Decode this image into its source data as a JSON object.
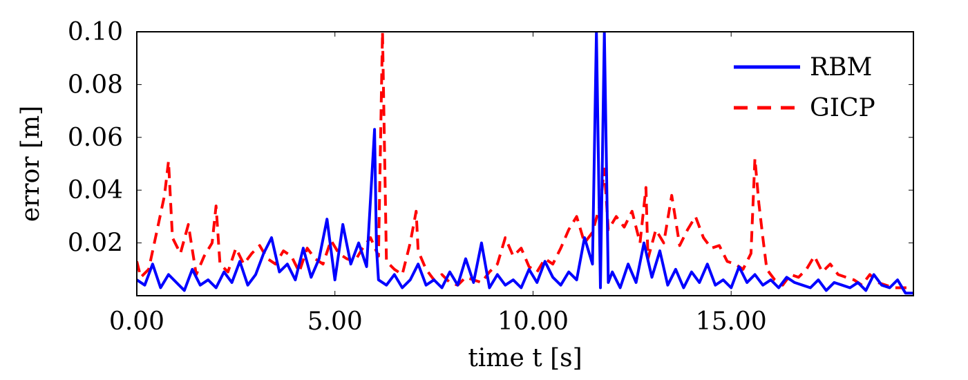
{
  "chart_data": {
    "type": "line",
    "xlabel": "time t [s]",
    "ylabel": "error [m]",
    "xlim": [
      0,
      19.6
    ],
    "ylim": [
      0,
      0.1
    ],
    "xticks": [
      0,
      5,
      10,
      15
    ],
    "xtick_labels": [
      "0.00",
      "5.00",
      "10.00",
      "15.00"
    ],
    "yticks": [
      0.02,
      0.04,
      0.06,
      0.08,
      0.1
    ],
    "ytick_labels": [
      "0.02",
      "0.04",
      "0.06",
      "0.08",
      "0.10"
    ],
    "grid": false,
    "legend_position": "top-right",
    "series": [
      {
        "name": "RBM",
        "color": "#0000ff",
        "style": "solid",
        "x": [
          0.0,
          0.2,
          0.4,
          0.6,
          0.8,
          1.0,
          1.2,
          1.4,
          1.6,
          1.8,
          2.0,
          2.2,
          2.4,
          2.6,
          2.8,
          3.0,
          3.2,
          3.4,
          3.6,
          3.8,
          4.0,
          4.2,
          4.4,
          4.6,
          4.8,
          5.0,
          5.2,
          5.4,
          5.6,
          5.8,
          6.0,
          6.05,
          6.1,
          6.3,
          6.5,
          6.7,
          6.9,
          7.1,
          7.3,
          7.5,
          7.7,
          7.9,
          8.1,
          8.3,
          8.5,
          8.7,
          8.9,
          9.1,
          9.3,
          9.5,
          9.7,
          9.9,
          10.1,
          10.3,
          10.5,
          10.7,
          10.9,
          11.1,
          11.3,
          11.5,
          11.6,
          11.7,
          11.8,
          11.9,
          12.0,
          12.2,
          12.4,
          12.6,
          12.8,
          13.0,
          13.2,
          13.4,
          13.6,
          13.8,
          14.0,
          14.2,
          14.4,
          14.6,
          14.8,
          15.0,
          15.2,
          15.4,
          15.6,
          15.8,
          16.0,
          16.2,
          16.4,
          16.6,
          16.8,
          17.0,
          17.2,
          17.4,
          17.6,
          17.8,
          18.0,
          18.2,
          18.4,
          18.6,
          18.8,
          19.0,
          19.2,
          19.4,
          19.6
        ],
        "y": [
          0.006,
          0.004,
          0.012,
          0.003,
          0.008,
          0.005,
          0.002,
          0.01,
          0.004,
          0.006,
          0.003,
          0.009,
          0.005,
          0.013,
          0.004,
          0.008,
          0.016,
          0.022,
          0.009,
          0.012,
          0.006,
          0.018,
          0.007,
          0.014,
          0.029,
          0.006,
          0.027,
          0.012,
          0.02,
          0.011,
          0.063,
          0.018,
          0.006,
          0.004,
          0.008,
          0.003,
          0.006,
          0.012,
          0.004,
          0.006,
          0.003,
          0.009,
          0.004,
          0.014,
          0.005,
          0.02,
          0.003,
          0.008,
          0.004,
          0.006,
          0.003,
          0.01,
          0.005,
          0.013,
          0.007,
          0.004,
          0.009,
          0.006,
          0.022,
          0.012,
          0.1,
          0.003,
          0.1,
          0.005,
          0.009,
          0.003,
          0.012,
          0.005,
          0.02,
          0.007,
          0.017,
          0.004,
          0.01,
          0.003,
          0.009,
          0.005,
          0.012,
          0.004,
          0.006,
          0.003,
          0.011,
          0.005,
          0.008,
          0.004,
          0.006,
          0.003,
          0.007,
          0.005,
          0.004,
          0.003,
          0.006,
          0.002,
          0.005,
          0.004,
          0.003,
          0.005,
          0.002,
          0.008,
          0.004,
          0.003,
          0.006,
          0.001,
          0.001
        ]
      },
      {
        "name": "GICP",
        "color": "#ff0000",
        "style": "dashed",
        "x": [
          0.0,
          0.1,
          0.3,
          0.5,
          0.7,
          0.8,
          0.9,
          1.1,
          1.3,
          1.5,
          1.7,
          1.9,
          2.0,
          2.1,
          2.3,
          2.5,
          2.7,
          2.9,
          3.1,
          3.3,
          3.5,
          3.7,
          3.9,
          4.1,
          4.3,
          4.5,
          4.7,
          4.9,
          5.1,
          5.3,
          5.5,
          5.7,
          5.9,
          6.1,
          6.2,
          6.3,
          6.5,
          6.7,
          6.9,
          7.05,
          7.1,
          7.3,
          7.5,
          7.7,
          7.9,
          8.1,
          8.3,
          8.5,
          8.7,
          8.9,
          9.1,
          9.3,
          9.5,
          9.7,
          9.9,
          10.1,
          10.3,
          10.5,
          10.7,
          10.9,
          11.1,
          11.3,
          11.5,
          11.7,
          11.8,
          11.9,
          12.1,
          12.3,
          12.5,
          12.7,
          12.85,
          12.9,
          13.1,
          13.3,
          13.5,
          13.7,
          13.9,
          14.1,
          14.3,
          14.5,
          14.7,
          14.9,
          15.1,
          15.3,
          15.5,
          15.6,
          15.7,
          15.8,
          15.9,
          16.1,
          16.3,
          16.5,
          16.7,
          16.9,
          17.1,
          17.3,
          17.5,
          17.7,
          17.9,
          18.1,
          18.3,
          18.5,
          18.7,
          18.9,
          19.1,
          19.3,
          19.6
        ],
        "y": [
          0.013,
          0.007,
          0.01,
          0.024,
          0.038,
          0.051,
          0.022,
          0.016,
          0.027,
          0.008,
          0.015,
          0.02,
          0.034,
          0.012,
          0.009,
          0.018,
          0.012,
          0.016,
          0.019,
          0.014,
          0.012,
          0.017,
          0.015,
          0.009,
          0.018,
          0.014,
          0.012,
          0.021,
          0.016,
          0.014,
          0.013,
          0.018,
          0.022,
          0.015,
          0.1,
          0.013,
          0.01,
          0.008,
          0.02,
          0.032,
          0.017,
          0.01,
          0.006,
          0.008,
          0.005,
          0.004,
          0.007,
          0.006,
          0.005,
          0.009,
          0.012,
          0.022,
          0.015,
          0.018,
          0.011,
          0.009,
          0.014,
          0.012,
          0.018,
          0.025,
          0.03,
          0.02,
          0.024,
          0.035,
          0.048,
          0.025,
          0.03,
          0.026,
          0.032,
          0.02,
          0.041,
          0.014,
          0.025,
          0.02,
          0.038,
          0.019,
          0.025,
          0.03,
          0.022,
          0.018,
          0.019,
          0.013,
          0.012,
          0.01,
          0.016,
          0.052,
          0.035,
          0.022,
          0.01,
          0.006,
          0.004,
          0.008,
          0.007,
          0.01,
          0.015,
          0.009,
          0.012,
          0.008,
          0.007,
          0.006,
          0.004,
          0.008,
          0.005,
          0.004,
          0.003,
          0.003,
          0.003
        ]
      }
    ]
  }
}
